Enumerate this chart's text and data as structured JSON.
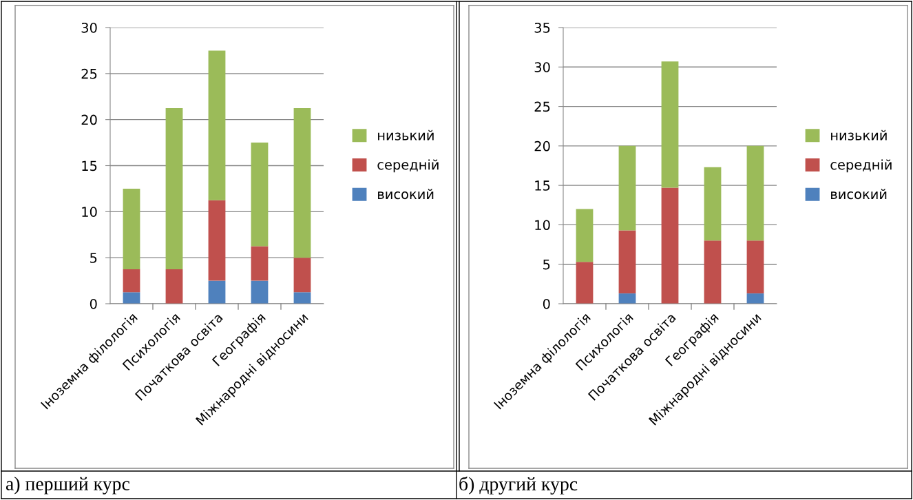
{
  "chart_data": [
    {
      "type": "bar",
      "stacked": true,
      "categories": [
        "Іноземна філологія",
        "Психологія",
        "Початкова освіта",
        "Географія",
        "Міжнародні відносини"
      ],
      "series": [
        {
          "name": "високий",
          "color": "#4f81bd",
          "values": [
            1.25,
            0,
            2.5,
            2.5,
            1.25
          ]
        },
        {
          "name": "середній",
          "color": "#c0504d",
          "values": [
            2.5,
            3.75,
            8.75,
            3.75,
            3.75
          ]
        },
        {
          "name": "низький",
          "color": "#9bbb59",
          "values": [
            8.75,
            17.5,
            16.25,
            11.25,
            16.25
          ]
        }
      ],
      "ylim": [
        0,
        30
      ],
      "yticks": [
        0,
        5,
        10,
        15,
        20,
        25,
        30
      ],
      "grid": "y",
      "legend": "right",
      "annotations": [
        "а) перший курс"
      ]
    },
    {
      "type": "bar",
      "stacked": true,
      "categories": [
        "Іноземна філологія",
        "Психологія",
        "Початкова освіта",
        "Географія",
        "Міжнародні відносини"
      ],
      "series": [
        {
          "name": "високий",
          "color": "#4f81bd",
          "values": [
            0,
            1.3,
            0,
            0,
            1.3
          ]
        },
        {
          "name": "середній",
          "color": "#c0504d",
          "values": [
            5.3,
            8.0,
            14.7,
            8.0,
            6.7
          ]
        },
        {
          "name": "низький",
          "color": "#9bbb59",
          "values": [
            6.7,
            10.7,
            16.0,
            9.3,
            12.0
          ]
        }
      ],
      "ylim": [
        0,
        35
      ],
      "yticks": [
        0,
        5,
        10,
        15,
        20,
        25,
        30,
        35
      ],
      "grid": "y",
      "legend": "right",
      "annotations": [
        "б) другий курс"
      ]
    }
  ]
}
